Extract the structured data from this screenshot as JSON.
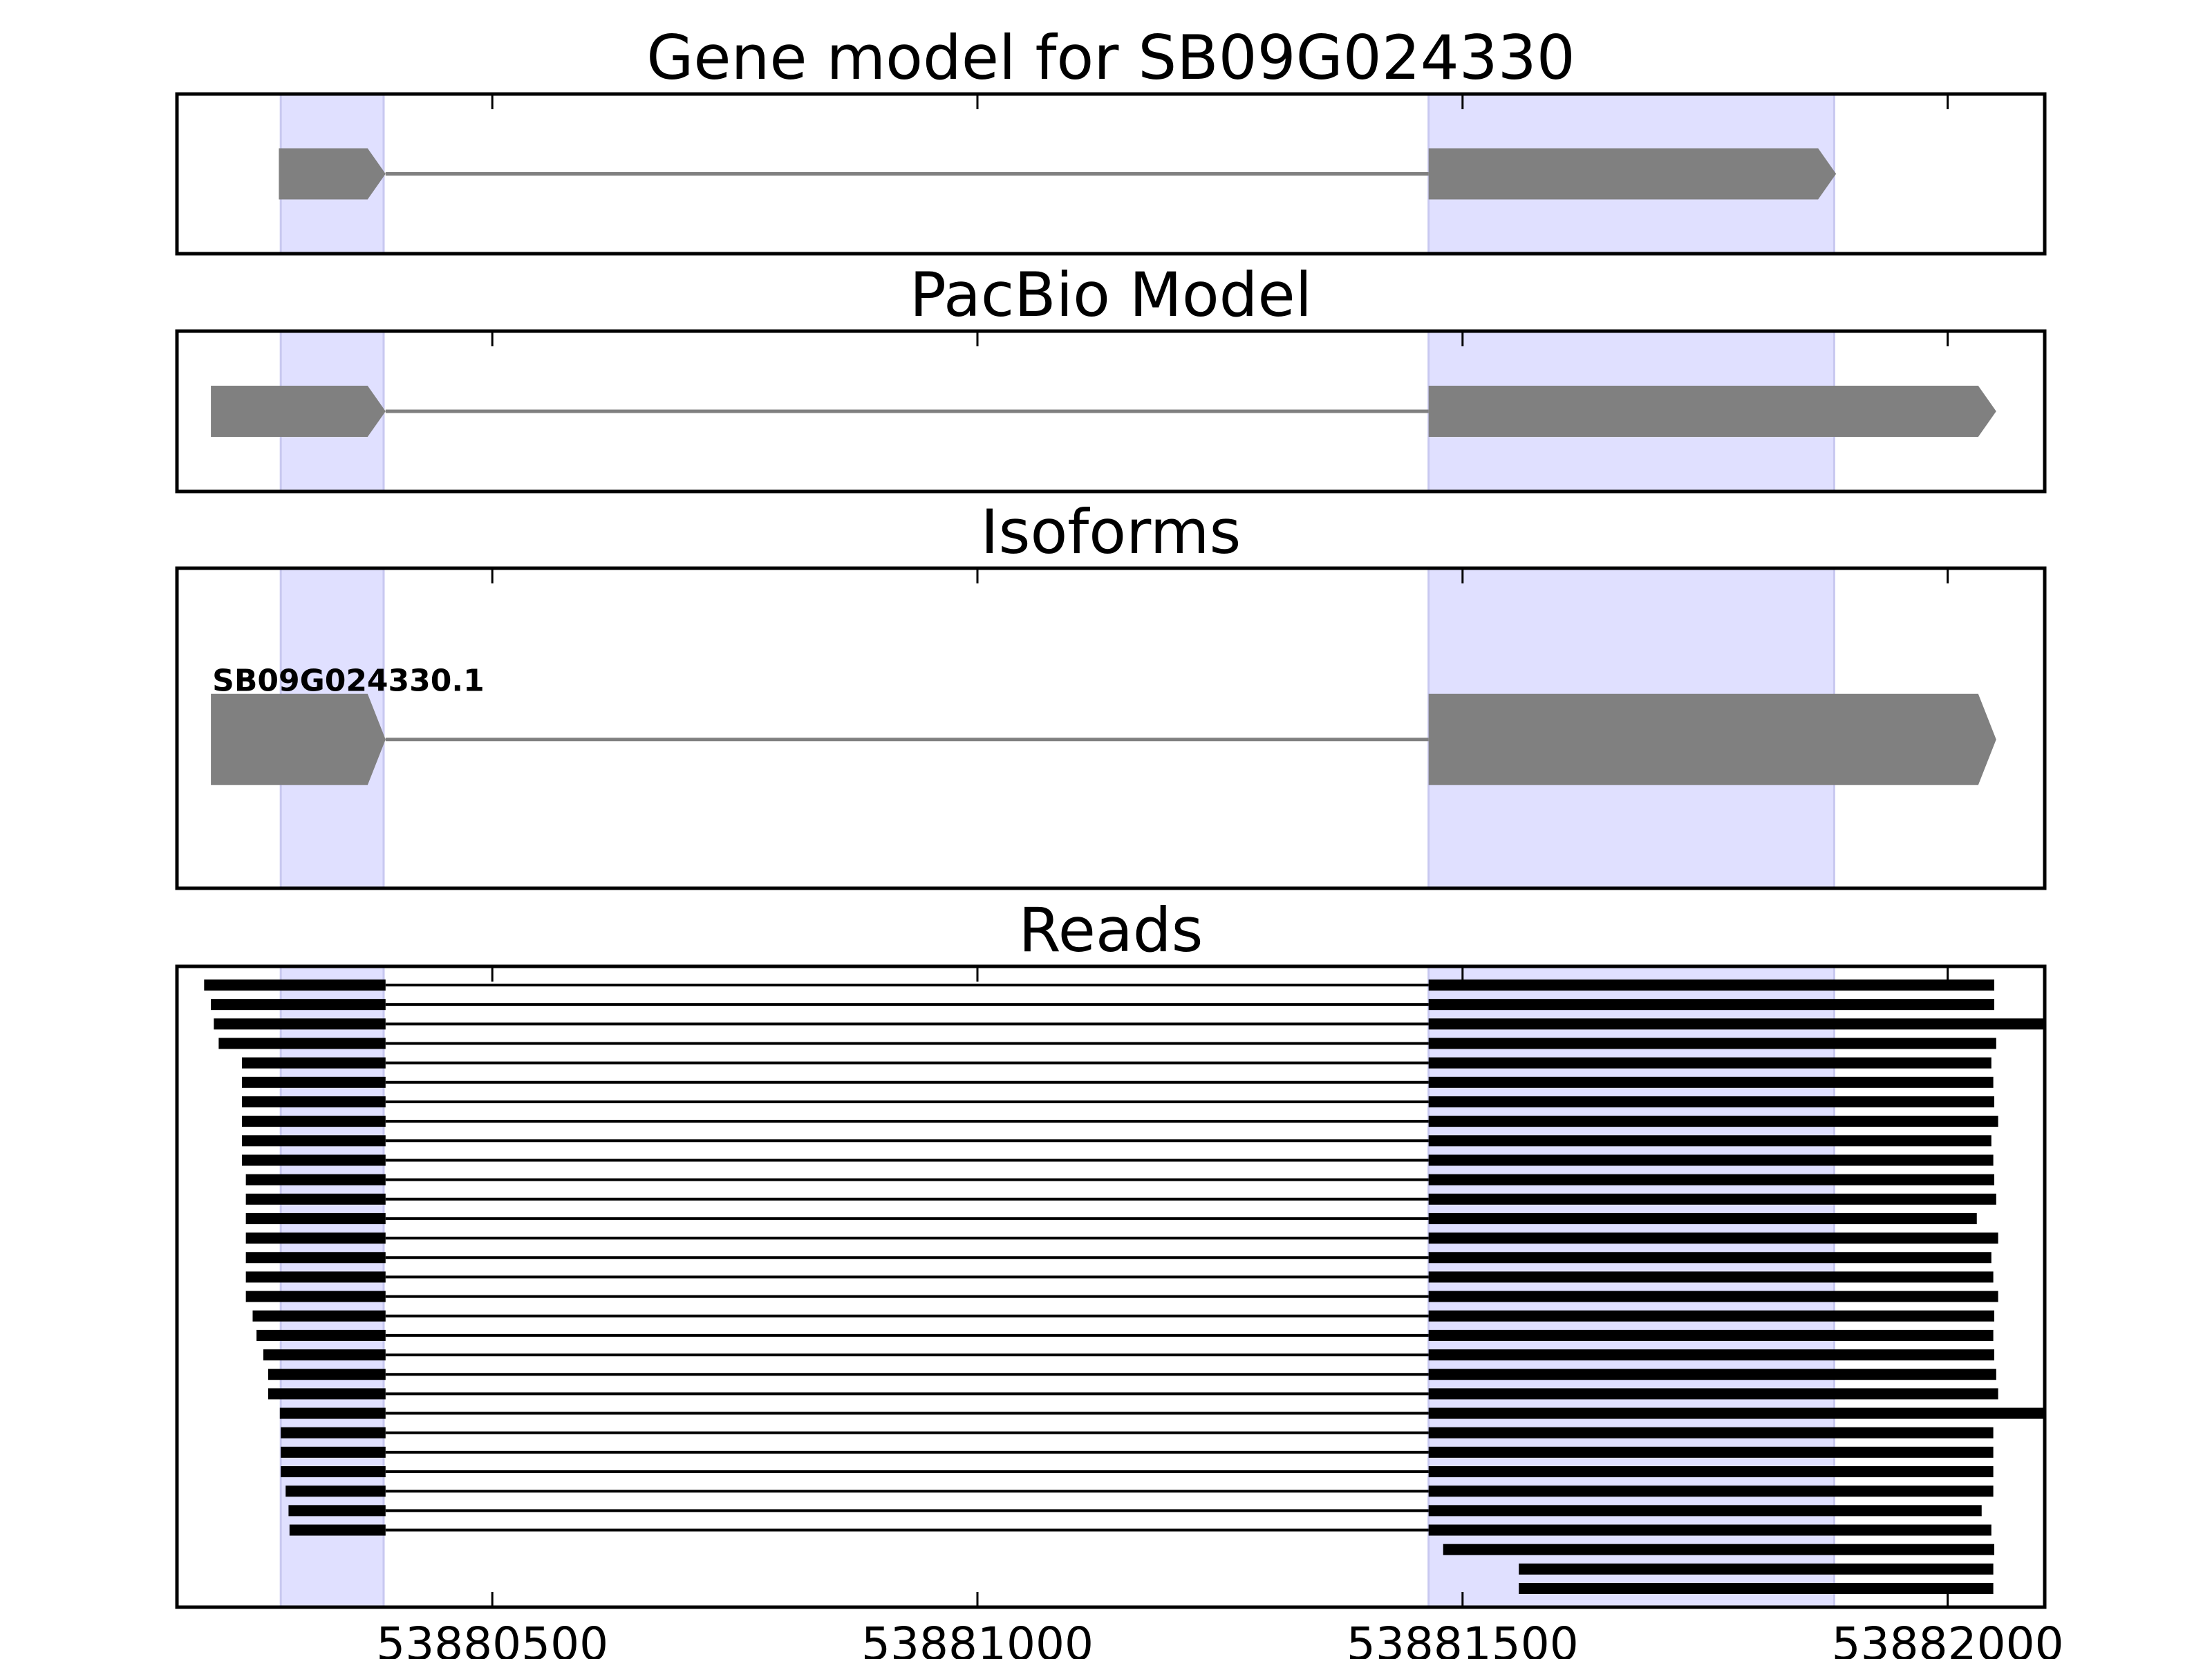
{
  "chart_data": {
    "type": "gene-track",
    "xlim": [
      53880175,
      53882100
    ],
    "xticks": [
      53880500,
      53881000,
      53881500,
      53882000
    ],
    "tick_labels": [
      "53880500",
      "53881000",
      "53881500",
      "53882000"
    ],
    "colors": {
      "feature": "#808080",
      "intron": "#808080",
      "read": "#000000",
      "exon_highlight": "#e0e0ff",
      "frame": "#000000"
    },
    "exon_highlights": [
      [
        53880282,
        53880388
      ],
      [
        53881465,
        53881883
      ]
    ],
    "panels": [
      {
        "title": "Gene model for SB09G024330",
        "exons": [
          [
            53880280,
            53880390
          ],
          [
            53881465,
            53881885
          ]
        ]
      },
      {
        "title": "PacBio Model",
        "exons": [
          [
            53880210,
            53880390
          ],
          [
            53881465,
            53882050
          ]
        ]
      },
      {
        "title": "Isoforms",
        "isoforms": [
          {
            "label": "SB09G024330.1",
            "exons": [
              [
                53880210,
                53880390
              ],
              [
                53881465,
                53882050
              ]
            ]
          }
        ]
      },
      {
        "title": "Reads",
        "reads": [
          [
            [
              53880203,
              53880390
            ],
            [
              53881465,
              53882048
            ]
          ],
          [
            [
              53880210,
              53880390
            ],
            [
              53881465,
              53882048
            ]
          ],
          [
            [
              53880213,
              53880390
            ],
            [
              53881465,
              53882100
            ]
          ],
          [
            [
              53880218,
              53880390
            ],
            [
              53881465,
              53882050
            ]
          ],
          [
            [
              53880242,
              53880390
            ],
            [
              53881465,
              53882045
            ]
          ],
          [
            [
              53880242,
              53880390
            ],
            [
              53881465,
              53882047
            ]
          ],
          [
            [
              53880242,
              53880390
            ],
            [
              53881465,
              53882048
            ]
          ],
          [
            [
              53880242,
              53880390
            ],
            [
              53881465,
              53882052
            ]
          ],
          [
            [
              53880242,
              53880390
            ],
            [
              53881465,
              53882045
            ]
          ],
          [
            [
              53880242,
              53880390
            ],
            [
              53881465,
              53882047
            ]
          ],
          [
            [
              53880246,
              53880390
            ],
            [
              53881465,
              53882048
            ]
          ],
          [
            [
              53880246,
              53880390
            ],
            [
              53881465,
              53882050
            ]
          ],
          [
            [
              53880246,
              53880390
            ],
            [
              53881465,
              53882030
            ]
          ],
          [
            [
              53880246,
              53880390
            ],
            [
              53881465,
              53882052
            ]
          ],
          [
            [
              53880246,
              53880390
            ],
            [
              53881465,
              53882045
            ]
          ],
          [
            [
              53880246,
              53880390
            ],
            [
              53881465,
              53882047
            ]
          ],
          [
            [
              53880246,
              53880390
            ],
            [
              53881465,
              53882052
            ]
          ],
          [
            [
              53880253,
              53880390
            ],
            [
              53881465,
              53882048
            ]
          ],
          [
            [
              53880257,
              53880390
            ],
            [
              53881465,
              53882047
            ]
          ],
          [
            [
              53880264,
              53880390
            ],
            [
              53881465,
              53882048
            ]
          ],
          [
            [
              53880269,
              53880390
            ],
            [
              53881465,
              53882050
            ]
          ],
          [
            [
              53880269,
              53880390
            ],
            [
              53881465,
              53882052
            ]
          ],
          [
            [
              53880281,
              53880390
            ],
            [
              53881465,
              53882100
            ]
          ],
          [
            [
              53880282,
              53880390
            ],
            [
              53881465,
              53882047
            ]
          ],
          [
            [
              53880282,
              53880390
            ],
            [
              53881465,
              53882047
            ]
          ],
          [
            [
              53880282,
              53880390
            ],
            [
              53881465,
              53882047
            ]
          ],
          [
            [
              53880287,
              53880390
            ],
            [
              53881465,
              53882047
            ]
          ],
          [
            [
              53880290,
              53880390
            ],
            [
              53881465,
              53882035
            ]
          ],
          [
            [
              53880291,
              53880390
            ],
            [
              53881465,
              53882045
            ]
          ],
          [
            [
              53881480,
              53882048
            ]
          ],
          [
            [
              53881558,
              53882047
            ]
          ],
          [
            [
              53881558,
              53882047
            ]
          ]
        ]
      }
    ]
  }
}
